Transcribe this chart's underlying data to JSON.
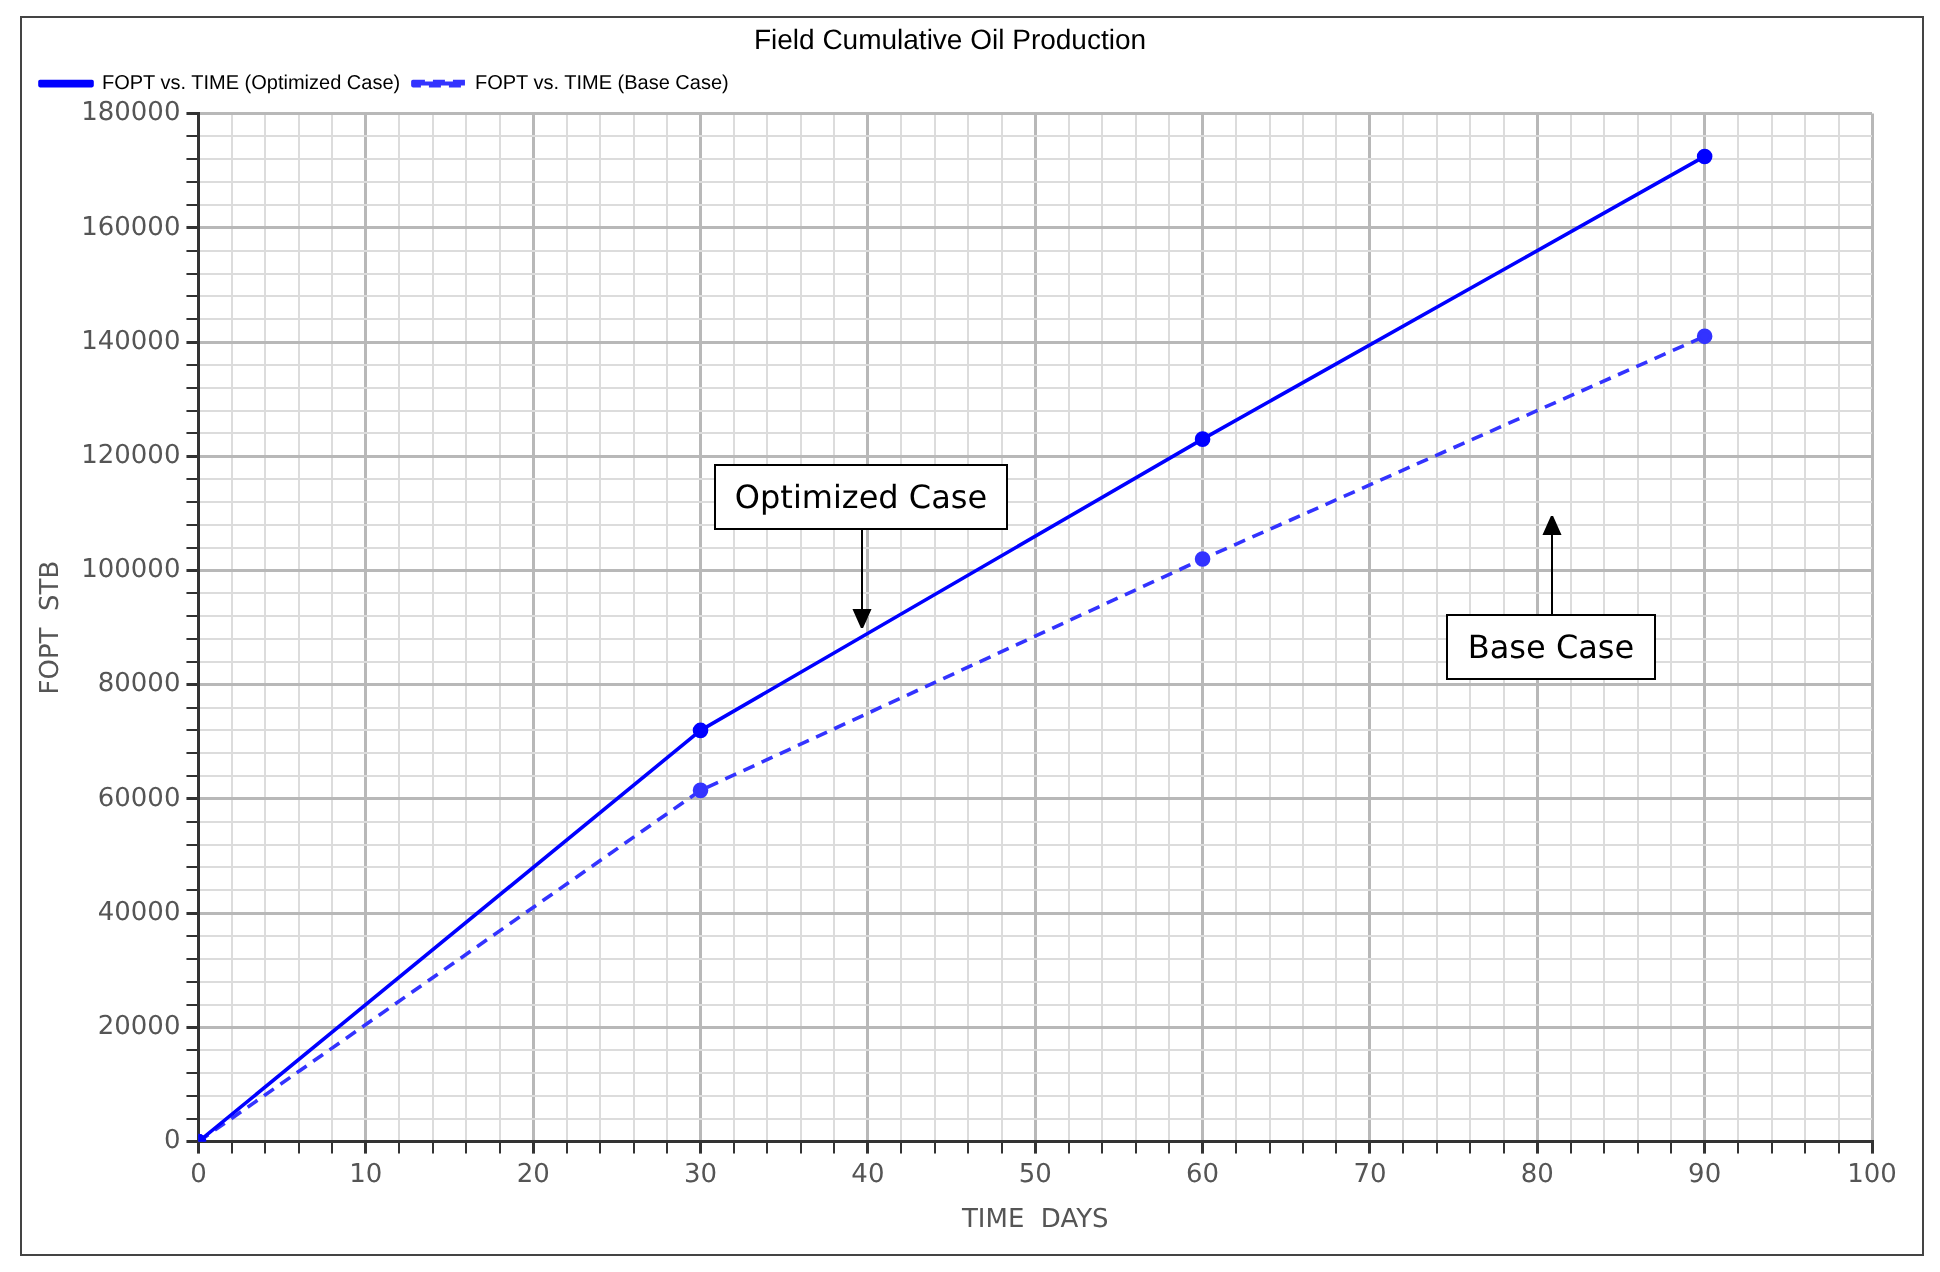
{
  "chart_data": {
    "type": "line",
    "title": "Field Cumulative Oil Production",
    "xlabel": "TIME  DAYS",
    "ylabel": "FOPT  STB",
    "series": [
      {
        "name": "FOPT vs. TIME (Optimized Case)",
        "color": "#0000ff",
        "x": [
          0,
          30,
          60,
          90
        ],
        "values": [
          0,
          72000,
          123000,
          172500
        ],
        "line_style": "solid"
      },
      {
        "name": "FOPT vs. TIME (Base Case)",
        "color": "#3333ff",
        "x": [
          0,
          30,
          60,
          90
        ],
        "values": [
          0,
          61500,
          102000,
          141000
        ],
        "line_style": "dashed"
      }
    ],
    "xlim": [
      0,
      100
    ],
    "ylim": [
      0,
      180000
    ],
    "xticks": [
      0,
      {
        "value": 2,
        "label": null
      },
      {
        "value": 4,
        "label": null
      },
      {
        "value": 6,
        "label": null
      },
      {
        "value": 8,
        "label": null
      },
      10,
      {
        "value": 12,
        "label": null
      },
      {
        "value": 14,
        "label": null
      },
      {
        "value": 16,
        "label": null
      },
      {
        "value": 18,
        "label": null
      },
      20,
      {
        "value": 22,
        "label": null
      },
      {
        "value": 24,
        "label": null
      },
      {
        "value": 26,
        "label": null
      },
      {
        "value": 28,
        "label": null
      },
      30,
      {
        "value": 32,
        "label": null
      },
      {
        "value": 34,
        "label": null
      },
      {
        "value": 36,
        "label": null
      },
      {
        "value": 38,
        "label": null
      },
      40,
      {
        "value": 42,
        "label": null
      },
      {
        "value": 44,
        "label": null
      },
      {
        "value": 46,
        "label": null
      },
      {
        "value": 48,
        "label": null
      },
      50,
      {
        "value": 52,
        "label": null
      },
      {
        "value": 54,
        "label": null
      },
      {
        "value": 56,
        "label": null
      },
      {
        "value": 58,
        "label": null
      },
      60,
      {
        "value": 62,
        "label": null
      },
      {
        "value": 64,
        "label": null
      },
      {
        "value": 66,
        "label": null
      },
      {
        "value": 68,
        "label": null
      },
      70,
      {
        "value": 72,
        "label": null
      },
      {
        "value": 74,
        "label": null
      },
      {
        "value": 76,
        "label": null
      },
      {
        "value": 78,
        "label": null
      },
      80,
      {
        "value": 82,
        "label": null
      },
      {
        "value": 84,
        "label": null
      },
      {
        "value": 86,
        "label": null
      },
      {
        "value": 88,
        "label": null
      },
      90,
      {
        "value": 92,
        "label": null
      },
      {
        "value": 94,
        "label": null
      },
      {
        "value": 96,
        "label": null
      },
      {
        "value": 98,
        "label": null
      },
      100
    ],
    "yticks": [
      0,
      {
        "value": 4000,
        "label": null
      },
      {
        "value": 8000,
        "label": null
      },
      {
        "value": 12000,
        "label": null
      },
      {
        "value": 16000,
        "label": null
      },
      20000,
      {
        "value": 24000,
        "label": null
      },
      {
        "value": 28000,
        "label": null
      },
      {
        "value": 32000,
        "label": null
      },
      {
        "value": 36000,
        "label": null
      },
      40000,
      {
        "value": 44000,
        "label": null
      },
      {
        "value": 48000,
        "label": null
      },
      {
        "value": 52000,
        "label": null
      },
      {
        "value": 56000,
        "label": null
      },
      60000,
      {
        "value": 64000,
        "label": null
      },
      {
        "value": 68000,
        "label": null
      },
      {
        "value": 72000,
        "label": null
      },
      {
        "value": 76000,
        "label": null
      },
      80000,
      {
        "value": 84000,
        "label": null
      },
      {
        "value": 88000,
        "label": null
      },
      {
        "value": 92000,
        "label": null
      },
      {
        "value": 96000,
        "label": null
      },
      100000,
      {
        "value": 104000,
        "label": null
      },
      {
        "value": 108000,
        "label": null
      },
      {
        "value": 112000,
        "label": null
      },
      {
        "value": 116000,
        "label": null
      },
      120000,
      {
        "value": 124000,
        "label": null
      },
      {
        "value": 128000,
        "label": null
      },
      {
        "value": 132000,
        "label": null
      },
      {
        "value": 136000,
        "label": null
      },
      140000,
      {
        "value": 144000,
        "label": null
      },
      {
        "value": 148000,
        "label": null
      },
      {
        "value": 152000,
        "label": null
      },
      {
        "value": 156000,
        "label": null
      },
      160000,
      {
        "value": 164000,
        "label": null
      },
      {
        "value": 168000,
        "label": null
      },
      {
        "value": 172000,
        "label": null
      },
      {
        "value": 176000,
        "label": null
      },
      180000
    ],
    "grid": true,
    "legend": "top left",
    "marker": "circle",
    "annotations": [
      "Optimized Case",
      "Base Case"
    ]
  }
}
